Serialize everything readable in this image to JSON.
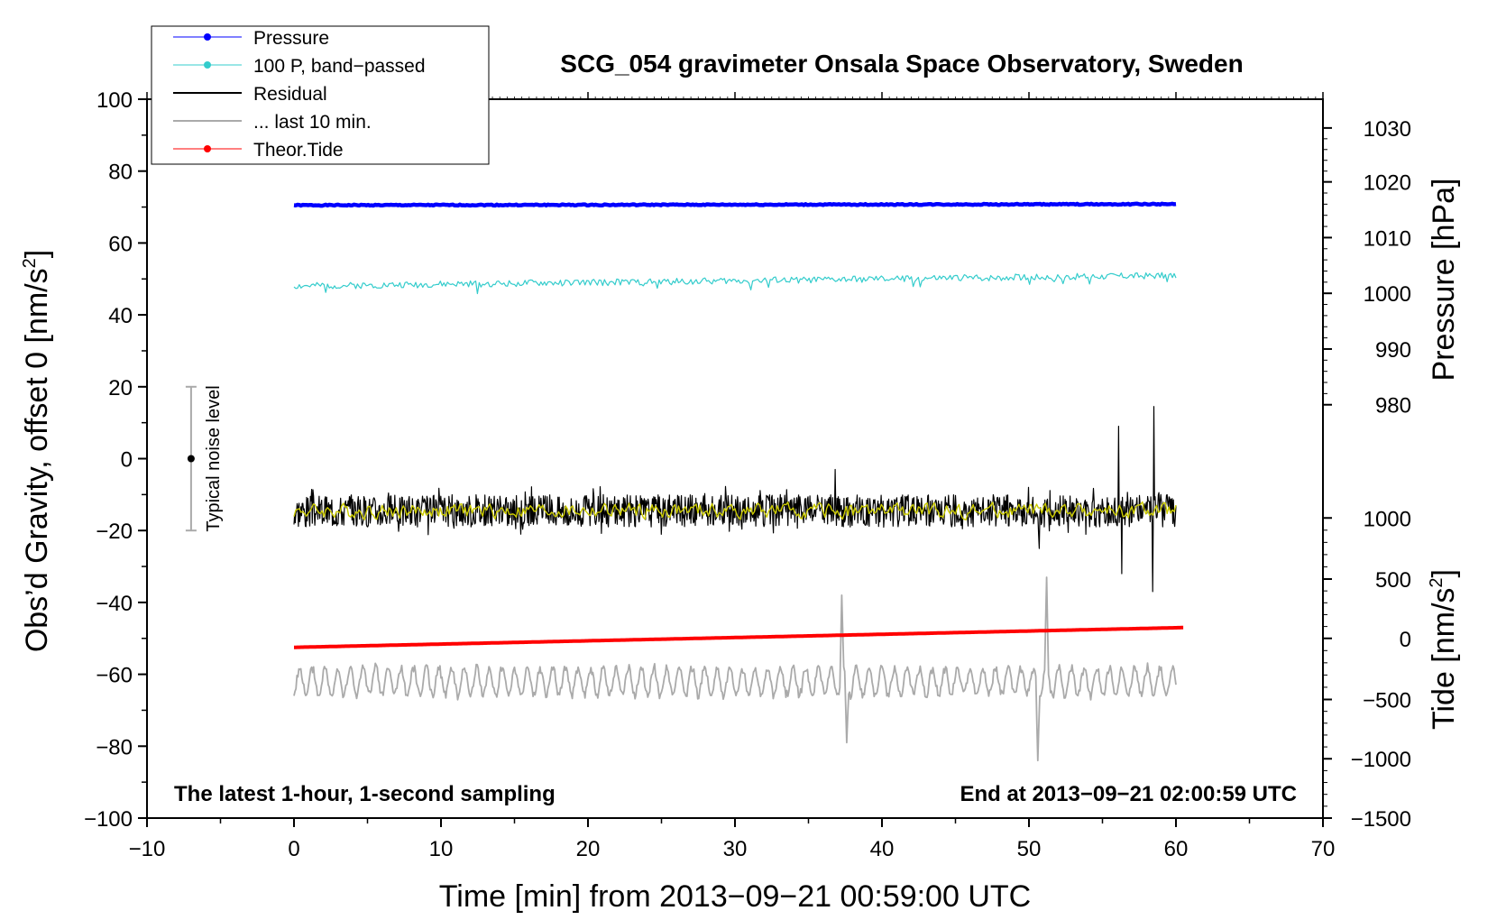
{
  "chart_data": {
    "type": "line",
    "title": "SCG_054 gravimeter Onsala Space Observatory, Sweden",
    "xlabel": "Time [min] from 2013−09−21 00:59:00 UTC",
    "ylabel_left": "Obs’d Gravity, offset 0 [nm/s",
    "ylabel_left_sup": "2",
    "ylabel_left_end": "]",
    "ylabel_pressure": "Pressure [hPa]",
    "ylabel_tide": "Tide [nm/s",
    "ylabel_tide_sup": "2",
    "ylabel_tide_end": "]",
    "xlim": [
      -10,
      70
    ],
    "ylim": [
      -100,
      100
    ],
    "x_ticks": [
      "−10",
      "0",
      "10",
      "20",
      "30",
      "40",
      "50",
      "60",
      "70"
    ],
    "x_tick_values": [
      -10,
      0,
      10,
      20,
      30,
      40,
      50,
      60,
      70
    ],
    "y_ticks": [
      "100",
      "80",
      "60",
      "40",
      "20",
      "0",
      "−20",
      "−40",
      "−60",
      "−80",
      "−100"
    ],
    "y_tick_values": [
      100,
      80,
      60,
      40,
      20,
      0,
      -20,
      -40,
      -60,
      -80,
      -100
    ],
    "pressure_ticks": [
      "1030",
      "1020",
      "1010",
      "1000",
      "990",
      "980"
    ],
    "pressure_tick_gravity": [
      92,
      77,
      61.5,
      46,
      30.5,
      15
    ],
    "tide_ticks": [
      "1000",
      "500",
      "0",
      "−500",
      "−1000",
      "−1500"
    ],
    "tide_tick_gravity": [
      -16.5,
      -33.5,
      -50,
      -67,
      -83.5,
      -100
    ],
    "note_left": "The latest 1-hour, 1-second sampling",
    "note_right": "End at 2013−09−21 02:00:59 UTC",
    "noise_bar": {
      "label": "Typical noise level",
      "x": -7,
      "center": 0,
      "low": -20,
      "high": 20
    },
    "legend": [
      {
        "label": "Pressure",
        "color": "#0000ff",
        "marker": true
      },
      {
        "label": "100 P, band−passed",
        "color": "#33cccc",
        "marker": true
      },
      {
        "label": "Residual",
        "color": "#000000",
        "marker": false
      },
      {
        "label": "... last 10 min.",
        "color": "#aaaaaa",
        "marker": false
      },
      {
        "label": "Theor.Tide",
        "color": "#ff0000",
        "marker": true
      }
    ],
    "series": [
      {
        "name": "Pressure",
        "color": "#0000ff",
        "x_start": 0,
        "x_end": 60,
        "level": 70.5,
        "trend": 0.3,
        "amp": 0.15,
        "shape": "flat",
        "seed": 1
      },
      {
        "name": "100 P, band−passed",
        "color": "#33cccc",
        "x_start": 0,
        "x_end": 60,
        "level": 48,
        "trend": 3,
        "amp": 0.9,
        "shape": "noisy",
        "seed": 2
      },
      {
        "name": "Residual",
        "color": "#000000",
        "x_start": 0,
        "x_end": 60,
        "level": -14.5,
        "trend": 0,
        "amp": 4.5,
        "shape": "residual",
        "seed": 3
      },
      {
        "name": "Residual smoothed",
        "color": "#cccc00",
        "x_start": 0,
        "x_end": 60,
        "level": -14.5,
        "trend": 0,
        "amp": 1.8,
        "shape": "smooth",
        "seed": 4
      },
      {
        "name": "... last 10 min.",
        "color": "#aaaaaa",
        "x_start": 0,
        "x_end": 60,
        "level": -62,
        "trend": 0,
        "amp": 4.5,
        "shape": "wave",
        "seed": 5
      },
      {
        "name": "Theor.Tide",
        "color": "#ff0000",
        "x_start": 0,
        "x_end": 60.5,
        "level": -52.5,
        "trend": 5.5,
        "amp": 0,
        "shape": "flat",
        "seed": 6
      }
    ],
    "spikes": [
      {
        "series": "Residual",
        "x": 56.1,
        "y": 9
      },
      {
        "series": "Residual",
        "x": 56.3,
        "y": -32
      },
      {
        "series": "Residual",
        "x": 58.5,
        "y": 14.5
      },
      {
        "series": "Residual",
        "x": 58.4,
        "y": -37
      },
      {
        "series": "Residual",
        "x": 36.8,
        "y": -3
      },
      {
        "series": "Residual",
        "x": 50.7,
        "y": -25
      },
      {
        "series": "... last 10 min.",
        "x": 37.3,
        "y": -38
      },
      {
        "series": "... last 10 min.",
        "x": 37.6,
        "y": -79
      },
      {
        "series": "... last 10 min.",
        "x": 51.2,
        "y": -33
      },
      {
        "series": "... last 10 min.",
        "x": 50.6,
        "y": -84
      }
    ]
  }
}
